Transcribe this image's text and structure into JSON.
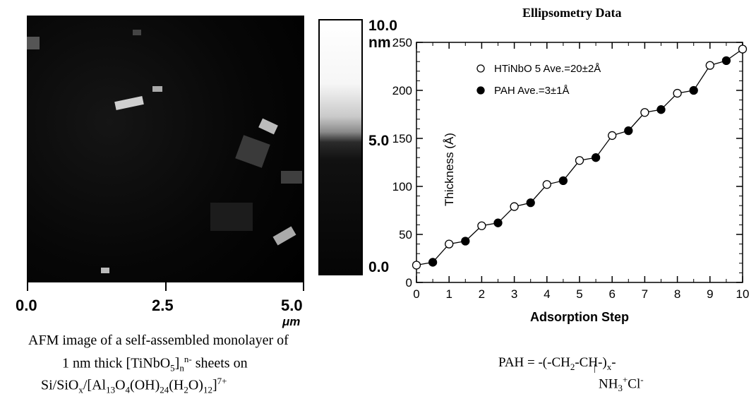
{
  "afm": {
    "x_tick_labels": [
      "0.0",
      "2.5",
      "5.0"
    ],
    "x_unit": "μm",
    "scale_labels": {
      "top": "10.0",
      "top_unit": "nm",
      "mid": "5.0",
      "bottom": "0.0"
    },
    "caption": {
      "line1": "AFM image of a self-assembled monolayer of",
      "line2_a": "1 nm thick [TiNbO",
      "line2_b": "5",
      "line2_c": "]",
      "line2_d": "n",
      "line2_e": "n-",
      "line2_f": " sheets on",
      "line3_a": "Si/SiO",
      "line3_b": "x",
      "line3_c": "/[Al",
      "line3_d": "13",
      "line3_e": "O",
      "line3_f": "4",
      "line3_g": "(OH)",
      "line3_h": "24",
      "line3_i": "(H",
      "line3_j": "2",
      "line3_k": "O)",
      "line3_l": "12",
      "line3_m": "]",
      "line3_n": "7+"
    }
  },
  "pah_formula": {
    "prefix": "PAH = -(-CH",
    "sub1": "2",
    "middle": "-CH-)",
    "sub2": "x",
    "suffix": "-",
    "branch": "|",
    "amine_a": "NH",
    "amine_b": "3",
    "amine_c": "+",
    "amine_d": "Cl",
    "amine_e": "-"
  },
  "chart_data": {
    "type": "line",
    "title": "Ellipsometry Data",
    "xlabel": "Adsorption Step",
    "ylabel": "Thickness (Å)",
    "xlim": [
      0,
      10
    ],
    "ylim": [
      0,
      250
    ],
    "x_ticks": [
      0,
      1,
      2,
      3,
      4,
      5,
      6,
      7,
      8,
      9,
      10
    ],
    "y_ticks": [
      0,
      50,
      100,
      150,
      200,
      250
    ],
    "legend_position": "top-left",
    "series": [
      {
        "name": "HTiNbO 5 Ave.=20±2Å",
        "marker": "open-circle",
        "x": [
          0,
          1,
          2,
          3,
          4,
          5,
          6,
          7,
          8,
          9,
          10
        ],
        "y": [
          18,
          40,
          59,
          79,
          102,
          127,
          153,
          177,
          197,
          226,
          243
        ]
      },
      {
        "name": "PAH Ave.=3±1Å",
        "marker": "filled-circle",
        "x": [
          0.5,
          1.5,
          2.5,
          3.5,
          4.5,
          5.5,
          6.5,
          7.5,
          8.5,
          9.5
        ],
        "y": [
          21,
          43,
          62,
          83,
          106,
          130,
          158,
          180,
          200,
          231
        ]
      }
    ],
    "legend": [
      {
        "label": "HTiNbO 5 Ave.=20±2Å",
        "marker": "open-circle"
      },
      {
        "label": "PAH Ave.=3±1Å",
        "marker": "filled-circle"
      }
    ],
    "connect_order": "alternating"
  }
}
